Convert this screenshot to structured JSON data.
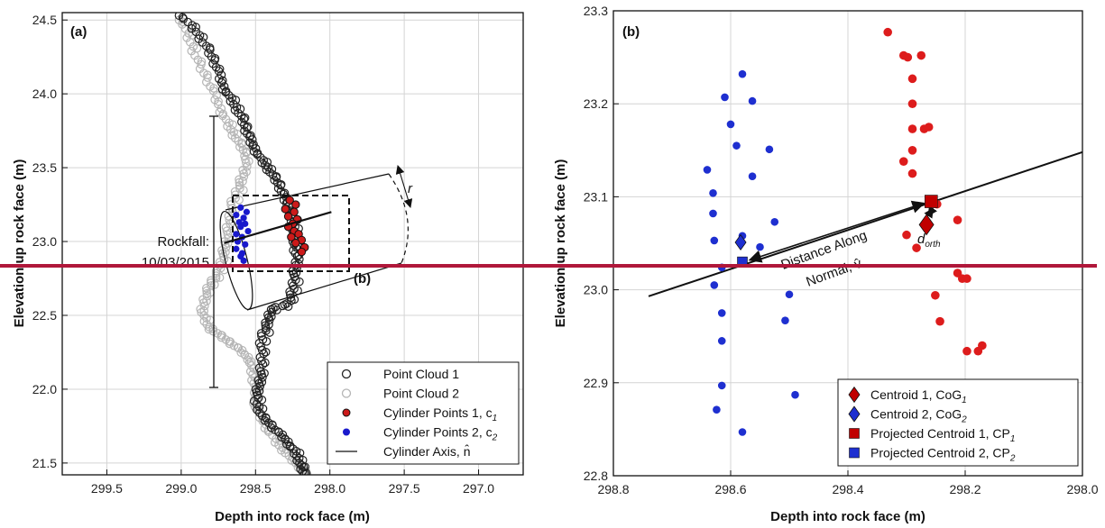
{
  "chart_data": [
    {
      "type": "scatter",
      "panel_label": "(a)",
      "xlabel": "Depth into rock face (m)",
      "ylabel": "Elevation up rock face (m)",
      "xlim": [
        299.8,
        296.7
      ],
      "ylim": [
        21.42,
        24.55
      ],
      "x_reversed": true,
      "xticks": [
        299.5,
        299.0,
        298.5,
        298.0,
        297.5,
        297.0
      ],
      "xtick_labels": [
        "299.5",
        "299.0",
        "298.5",
        "298.0",
        "297.5",
        "297.0"
      ],
      "yticks": [
        21.5,
        22.0,
        22.5,
        23.0,
        23.5,
        24.0,
        24.5
      ],
      "ytick_labels": [
        "21.5",
        "22.0",
        "22.5",
        "23.0",
        "23.5",
        "24.0",
        "24.5"
      ],
      "grid": true,
      "legend_position": "bottom-right",
      "series": [
        {
          "name": "Point Cloud 1",
          "marker": "open-circle",
          "color": "#222222",
          "path": [
            [
              299.0,
              24.53
            ],
            [
              298.9,
              24.42
            ],
            [
              298.82,
              24.3
            ],
            [
              298.76,
              24.18
            ],
            [
              298.72,
              24.05
            ],
            [
              298.66,
              23.95
            ],
            [
              298.6,
              23.85
            ],
            [
              298.56,
              23.75
            ],
            [
              298.52,
              23.65
            ],
            [
              298.46,
              23.55
            ],
            [
              298.4,
              23.47
            ],
            [
              298.34,
              23.38
            ],
            [
              298.3,
              23.28
            ],
            [
              298.26,
              23.18
            ],
            [
              298.24,
              23.08
            ],
            [
              298.24,
              22.98
            ],
            [
              298.22,
              22.88
            ],
            [
              298.24,
              22.78
            ],
            [
              298.25,
              22.68
            ],
            [
              298.28,
              22.58
            ],
            [
              298.4,
              22.54
            ],
            [
              298.42,
              22.45
            ],
            [
              298.46,
              22.36
            ],
            [
              298.46,
              22.24
            ],
            [
              298.46,
              22.12
            ],
            [
              298.48,
              22.02
            ],
            [
              298.5,
              21.92
            ],
            [
              298.46,
              21.82
            ],
            [
              298.38,
              21.74
            ],
            [
              298.3,
              21.66
            ],
            [
              298.24,
              21.58
            ],
            [
              298.2,
              21.5
            ],
            [
              298.18,
              21.43
            ]
          ]
        },
        {
          "name": "Point Cloud 2",
          "marker": "open-circle",
          "color": "#b5b5b5",
          "path": [
            [
              299.0,
              24.5
            ],
            [
              298.94,
              24.35
            ],
            [
              298.88,
              24.2
            ],
            [
              298.8,
              24.05
            ],
            [
              298.74,
              23.9
            ],
            [
              298.68,
              23.78
            ],
            [
              298.62,
              23.68
            ],
            [
              298.56,
              23.58
            ],
            [
              298.58,
              23.46
            ],
            [
              298.62,
              23.36
            ],
            [
              298.66,
              23.25
            ],
            [
              298.68,
              23.12
            ],
            [
              298.7,
              23.0
            ],
            [
              298.72,
              22.9
            ],
            [
              298.75,
              22.8
            ],
            [
              298.8,
              22.72
            ],
            [
              298.84,
              22.63
            ],
            [
              298.86,
              22.52
            ],
            [
              298.82,
              22.42
            ],
            [
              298.72,
              22.35
            ],
            [
              298.62,
              22.28
            ],
            [
              298.54,
              22.2
            ],
            [
              298.52,
              22.1
            ],
            [
              298.5,
              22.0
            ],
            [
              298.5,
              21.88
            ],
            [
              298.44,
              21.76
            ],
            [
              298.36,
              21.64
            ],
            [
              298.28,
              21.55
            ],
            [
              298.2,
              21.47
            ],
            [
              298.16,
              21.43
            ]
          ]
        },
        {
          "name": "Cylinder Points 1, c₁",
          "marker": "filled-circle",
          "color": "#cc1a1a",
          "points": [
            [
              298.27,
              23.28
            ],
            [
              298.23,
              23.25
            ],
            [
              298.3,
              23.22
            ],
            [
              298.24,
              23.2
            ],
            [
              298.28,
              23.17
            ],
            [
              298.22,
              23.15
            ],
            [
              298.25,
              23.12
            ],
            [
              298.28,
              23.1
            ],
            [
              298.24,
              23.07
            ],
            [
              298.21,
              23.05
            ],
            [
              298.26,
              23.03
            ],
            [
              298.19,
              23.01
            ],
            [
              298.23,
              22.99
            ],
            [
              298.17,
              22.96
            ],
            [
              298.19,
              22.93
            ]
          ]
        },
        {
          "name": "Cylinder Points 2, c₂",
          "marker": "filled-circle",
          "color": "#1a1acc",
          "points": [
            [
              298.6,
              23.23
            ],
            [
              298.56,
              23.2
            ],
            [
              298.63,
              23.18
            ],
            [
              298.58,
              23.16
            ],
            [
              298.61,
              23.13
            ],
            [
              298.57,
              23.12
            ],
            [
              298.6,
              23.1
            ],
            [
              298.55,
              23.07
            ],
            [
              298.63,
              23.05
            ],
            [
              298.59,
              23.03
            ],
            [
              298.62,
              23.0
            ],
            [
              298.57,
              22.98
            ],
            [
              298.63,
              22.95
            ],
            [
              298.59,
              22.92
            ],
            [
              298.6,
              22.9
            ],
            [
              298.58,
              22.87
            ]
          ]
        }
      ],
      "cylinder_axis": {
        "name": "Cylinder Axis, n̂",
        "start": [
          298.71,
          22.99
        ],
        "end": [
          297.99,
          23.2
        ]
      },
      "annotations": [
        {
          "text": "Rockfall:",
          "kind": "label"
        },
        {
          "text": "10/03/2015",
          "kind": "label"
        },
        {
          "text": "(b)",
          "kind": "inset-label"
        },
        {
          "text": "r",
          "kind": "radius-label"
        }
      ]
    },
    {
      "type": "scatter",
      "panel_label": "(b)",
      "xlabel": "Depth into rock face (m)",
      "ylabel": "Elevation up rock face (m)",
      "xlim": [
        298.8,
        298.0
      ],
      "ylim": [
        22.8,
        23.3
      ],
      "x_reversed": true,
      "xticks": [
        298.8,
        298.6,
        298.4,
        298.2,
        298.0
      ],
      "xtick_labels": [
        "298.8",
        "298.6",
        "298.4",
        "298.2",
        "298.0"
      ],
      "yticks": [
        22.8,
        22.9,
        23.0,
        23.1,
        23.2,
        23.3
      ],
      "ytick_labels": [
        "22.8",
        "22.9",
        "23.0",
        "23.1",
        "23.2",
        "23.3"
      ],
      "grid": true,
      "legend_position": "bottom-right",
      "series": [
        {
          "name": "Cylinder Points 1",
          "marker": "filled-circle",
          "color": "#dd1c1c",
          "points": [
            [
              298.332,
              23.277
            ],
            [
              298.305,
              23.252
            ],
            [
              298.298,
              23.25
            ],
            [
              298.275,
              23.252
            ],
            [
              298.29,
              23.227
            ],
            [
              298.29,
              23.2
            ],
            [
              298.27,
              23.173
            ],
            [
              298.262,
              23.175
            ],
            [
              298.29,
              23.173
            ],
            [
              298.29,
              23.15
            ],
            [
              298.305,
              23.138
            ],
            [
              298.29,
              23.125
            ],
            [
              298.248,
              23.092
            ],
            [
              298.213,
              23.075
            ],
            [
              298.3,
              23.059
            ],
            [
              298.283,
              23.045
            ],
            [
              298.213,
              23.018
            ],
            [
              298.205,
              23.012
            ],
            [
              298.197,
              23.012
            ],
            [
              298.251,
              22.994
            ],
            [
              298.243,
              22.966
            ],
            [
              298.171,
              22.94
            ],
            [
              298.197,
              22.934
            ],
            [
              298.178,
              22.934
            ]
          ]
        },
        {
          "name": "Cylinder Points 2",
          "marker": "filled-circle",
          "color": "#1e2fd0",
          "points": [
            [
              298.58,
              23.232
            ],
            [
              298.61,
              23.207
            ],
            [
              298.563,
              23.203
            ],
            [
              298.6,
              23.178
            ],
            [
              298.59,
              23.155
            ],
            [
              298.534,
              23.151
            ],
            [
              298.64,
              23.129
            ],
            [
              298.563,
              23.122
            ],
            [
              298.63,
              23.104
            ],
            [
              298.63,
              23.082
            ],
            [
              298.525,
              23.073
            ],
            [
              298.58,
              23.058
            ],
            [
              298.628,
              23.053
            ],
            [
              298.55,
              23.046
            ],
            [
              298.615,
              23.024
            ],
            [
              298.628,
              23.005
            ],
            [
              298.5,
              22.995
            ],
            [
              298.507,
              22.967
            ],
            [
              298.615,
              22.975
            ],
            [
              298.615,
              22.945
            ],
            [
              298.615,
              22.897
            ],
            [
              298.49,
              22.887
            ],
            [
              298.624,
              22.871
            ],
            [
              298.58,
              22.847
            ]
          ]
        },
        {
          "name": "Centroid 1, CoG₁",
          "marker": "diamond",
          "color": "#c00000",
          "points": [
            [
              298.266,
              23.07
            ]
          ]
        },
        {
          "name": "Centroid 2, CoG₂",
          "marker": "diamond",
          "color": "#1e2fd0",
          "points": [
            [
              298.583,
              23.051
            ]
          ]
        },
        {
          "name": "Projected Centroid 1, CP₁",
          "marker": "square",
          "color": "#c00000",
          "points": [
            [
              298.258,
              23.095
            ]
          ]
        },
        {
          "name": "Projected Centroid 2, CP₂",
          "marker": "square",
          "color": "#1e2fd0",
          "points": [
            [
              298.58,
              23.03
            ]
          ]
        }
      ],
      "normal_line": {
        "start": [
          298.74,
          22.993
        ],
        "end": [
          298.0,
          23.148
        ]
      },
      "annotations": [
        {
          "text": "Distance Along",
          "kind": "label"
        },
        {
          "text": "Normal, v̂",
          "kind": "label"
        },
        {
          "text": "d",
          "kind": "label"
        },
        {
          "text": "orth",
          "kind": "subscript"
        }
      ]
    }
  ],
  "panel_a": {
    "panel_label": "(a)",
    "xlabel": "Depth into rock face (m)",
    "ylabel": "Elevation up rock face (m)",
    "rockfall_line1": "Rockfall:",
    "rockfall_line2": "10/03/2015",
    "inset_label": "(b)",
    "radius_label": "r",
    "legend": [
      {
        "label": "Point Cloud 1",
        "sub": "",
        "marker": "open-circle",
        "color": "#222222"
      },
      {
        "label": "Point Cloud 2",
        "sub": "",
        "marker": "open-circle",
        "color": "#b5b5b5"
      },
      {
        "label": "Cylinder Points 1, c",
        "sub": "1",
        "marker": "filled-circle",
        "color": "#cc1a1a"
      },
      {
        "label": "Cylinder Points 2, c",
        "sub": "2",
        "marker": "filled-circle",
        "color": "#1a1acc"
      },
      {
        "label": "Cylinder Axis, n̂",
        "sub": "",
        "marker": "line",
        "color": "#111111"
      }
    ]
  },
  "panel_b": {
    "panel_label": "(b)",
    "xlabel": "Depth into rock face (m)",
    "ylabel": "Elevation up rock face (m)",
    "normal_label1": "Distance Along",
    "normal_label2": "Normal, v̂",
    "dorth_label": "d",
    "dorth_sub": "orth",
    "legend": [
      {
        "label": "Centroid 1, CoG",
        "sub": "1",
        "marker": "diamond",
        "color": "#c00000"
      },
      {
        "label": "Centroid 2, CoG",
        "sub": "2",
        "marker": "diamond",
        "color": "#1e2fd0"
      },
      {
        "label": "Projected Centroid 1, CP",
        "sub": "1",
        "marker": "square",
        "color": "#c00000"
      },
      {
        "label": "Projected Centroid 2, CP",
        "sub": "2",
        "marker": "square",
        "color": "#1e2fd0"
      }
    ]
  },
  "overlay": {
    "horizontal_line_color": "#b0173a"
  }
}
